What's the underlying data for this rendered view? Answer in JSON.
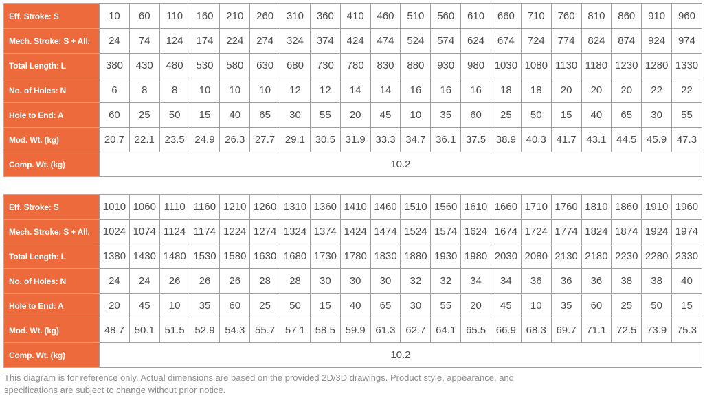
{
  "colors": {
    "header_bg": "#EC6A3C",
    "header_divider": "#F09A74",
    "grid_border": "#9F9F9F",
    "data_text": "#4D4D4D",
    "header_text": "#FFFFFF",
    "footer_text": "#8E8E8E"
  },
  "row_labels": [
    "Eff. Stroke: S",
    "Mech. Stroke: S + All.",
    "Total Length: L",
    "No. of Holes: N",
    "Hole to End: A",
    "Mod. Wt. (kg)",
    "Comp. Wt. (kg)"
  ],
  "tables": [
    {
      "name": "spec-table-1",
      "rows": [
        [
          "10",
          "60",
          "110",
          "160",
          "210",
          "260",
          "310",
          "360",
          "410",
          "460",
          "510",
          "560",
          "610",
          "660",
          "710",
          "760",
          "810",
          "860",
          "910",
          "960"
        ],
        [
          "24",
          "74",
          "124",
          "174",
          "224",
          "274",
          "324",
          "374",
          "424",
          "474",
          "524",
          "574",
          "624",
          "674",
          "724",
          "774",
          "824",
          "874",
          "924",
          "974"
        ],
        [
          "380",
          "430",
          "480",
          "530",
          "580",
          "630",
          "680",
          "730",
          "780",
          "830",
          "880",
          "930",
          "980",
          "1030",
          "1080",
          "1130",
          "1180",
          "1230",
          "1280",
          "1330"
        ],
        [
          "6",
          "8",
          "8",
          "10",
          "10",
          "10",
          "12",
          "12",
          "14",
          "14",
          "16",
          "16",
          "16",
          "18",
          "18",
          "20",
          "20",
          "20",
          "22",
          "22"
        ],
        [
          "60",
          "25",
          "50",
          "15",
          "40",
          "65",
          "30",
          "55",
          "20",
          "45",
          "10",
          "35",
          "60",
          "25",
          "50",
          "15",
          "40",
          "65",
          "30",
          "55"
        ],
        [
          "20.7",
          "22.1",
          "23.5",
          "24.9",
          "26.3",
          "27.7",
          "29.1",
          "30.5",
          "31.9",
          "33.3",
          "34.7",
          "36.1",
          "37.5",
          "38.9",
          "40.3",
          "41.7",
          "43.1",
          "44.5",
          "45.9",
          "47.3"
        ]
      ],
      "comp_wt": "10.2"
    },
    {
      "name": "spec-table-2",
      "rows": [
        [
          "1010",
          "1060",
          "1110",
          "1160",
          "1210",
          "1260",
          "1310",
          "1360",
          "1410",
          "1460",
          "1510",
          "1560",
          "1610",
          "1660",
          "1710",
          "1760",
          "1810",
          "1860",
          "1910",
          "1960"
        ],
        [
          "1024",
          "1074",
          "1124",
          "1174",
          "1224",
          "1274",
          "1324",
          "1374",
          "1424",
          "1474",
          "1524",
          "1574",
          "1624",
          "1674",
          "1724",
          "1774",
          "1824",
          "1874",
          "1924",
          "1974"
        ],
        [
          "1380",
          "1430",
          "1480",
          "1530",
          "1580",
          "1630",
          "1680",
          "1730",
          "1780",
          "1830",
          "1880",
          "1930",
          "1980",
          "2030",
          "2080",
          "2130",
          "2180",
          "2230",
          "2280",
          "2330"
        ],
        [
          "24",
          "24",
          "26",
          "26",
          "26",
          "28",
          "28",
          "30",
          "30",
          "30",
          "32",
          "32",
          "34",
          "34",
          "36",
          "36",
          "36",
          "38",
          "38",
          "40"
        ],
        [
          "20",
          "45",
          "10",
          "35",
          "60",
          "25",
          "50",
          "15",
          "40",
          "65",
          "30",
          "55",
          "20",
          "45",
          "10",
          "35",
          "60",
          "25",
          "50",
          "15"
        ],
        [
          "48.7",
          "50.1",
          "51.5",
          "52.9",
          "54.3",
          "55.7",
          "57.1",
          "58.5",
          "59.9",
          "61.3",
          "62.7",
          "64.1",
          "65.5",
          "66.9",
          "68.3",
          "69.7",
          "71.1",
          "72.5",
          "73.9",
          "75.3"
        ]
      ],
      "comp_wt": "10.2"
    }
  ],
  "footer": {
    "line1": "This diagram is for reference only. Actual dimensions are based on the provided 2D/3D drawings. Product style, appearance, and",
    "line2": "specifications are subject to change without prior notice."
  }
}
